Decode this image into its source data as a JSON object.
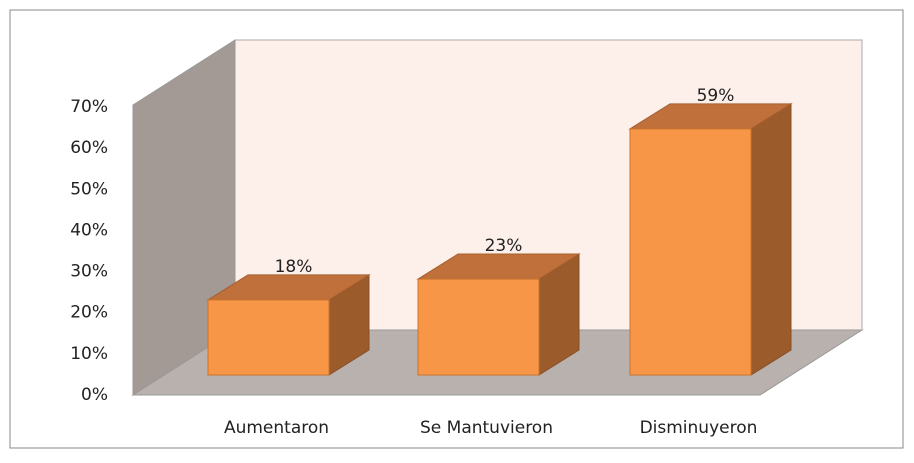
{
  "chart_data": {
    "type": "bar3d",
    "categories": [
      "Aumentaron",
      "Se Mantuvieron",
      "Disminuyeron"
    ],
    "values": [
      18,
      23,
      59
    ],
    "value_labels": [
      "18%",
      "23%",
      "59%"
    ],
    "color": "#f79646",
    "ylim": [
      0,
      70
    ],
    "yticks": [
      {
        "value": 0,
        "label": "0%"
      },
      {
        "value": 10,
        "label": "10%"
      },
      {
        "value": 20,
        "label": "20%"
      },
      {
        "value": 30,
        "label": "30%"
      },
      {
        "value": 40,
        "label": "40%"
      },
      {
        "value": 50,
        "label": "50%"
      },
      {
        "value": 60,
        "label": "60%"
      },
      {
        "value": 70,
        "label": "70%"
      }
    ]
  }
}
